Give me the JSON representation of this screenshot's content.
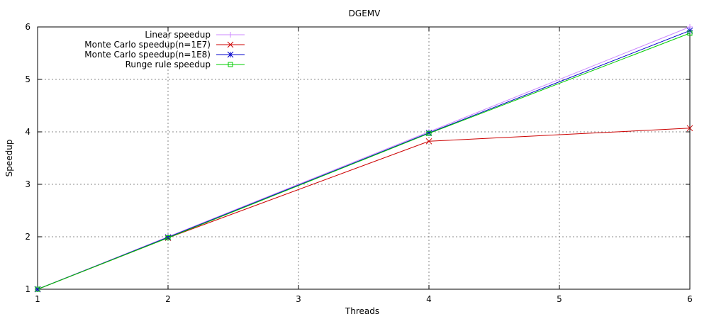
{
  "chart_data": {
    "type": "line",
    "title": "DGEMV",
    "xlabel": "Threads",
    "ylabel": "Speedup",
    "xlim": [
      1,
      6
    ],
    "ylim": [
      1,
      6
    ],
    "xticks": [
      "1",
      "2",
      "3",
      "4",
      "5",
      "6"
    ],
    "yticks": [
      "1",
      "2",
      "3",
      "4",
      "5",
      "6"
    ],
    "grid": true,
    "legend_position": "top-left",
    "series": [
      {
        "name": "Linear speedup",
        "color": "#cc88ff",
        "marker": "plus",
        "x": [
          1,
          2,
          4,
          6
        ],
        "y": [
          1,
          2,
          4,
          6
        ]
      },
      {
        "name": "Monte Carlo speedup(n=1E7)",
        "color": "#cc0000",
        "marker": "cross",
        "x": [
          1,
          2,
          4,
          6
        ],
        "y": [
          1,
          1.98,
          3.82,
          4.07
        ]
      },
      {
        "name": "Monte Carlo speedup(n=1E8)",
        "color": "#0000cc",
        "marker": "star",
        "x": [
          1,
          2,
          4,
          6
        ],
        "y": [
          1,
          1.99,
          3.98,
          5.93
        ]
      },
      {
        "name": "Runge rule speedup",
        "color": "#00cc00",
        "marker": "square",
        "x": [
          1,
          2,
          4,
          6
        ],
        "y": [
          1,
          1.98,
          3.97,
          5.88
        ]
      }
    ]
  }
}
